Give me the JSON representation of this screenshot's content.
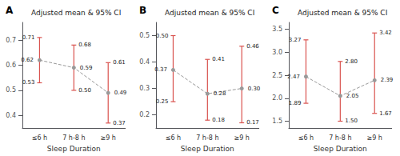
{
  "chart_data": [
    {
      "type": "line",
      "panel_label": "A",
      "title": "Adjusted mean & 95% CI",
      "xlabel": "Sleep Duration",
      "categories": [
        "≤6 h",
        "7 h-8 h",
        "≥9 h"
      ],
      "values": [
        0.62,
        0.59,
        0.49
      ],
      "value_labels": [
        "0.62",
        "0.59",
        "0.49"
      ],
      "ci_low": [
        0.53,
        0.5,
        0.37
      ],
      "ci_low_labels": [
        "0.53",
        "0.50",
        "0.37"
      ],
      "ci_high": [
        0.71,
        0.68,
        0.61
      ],
      "ci_high_labels": [
        "0.71",
        "0.68",
        "0.61"
      ],
      "ylim": [
        0.35,
        0.77
      ],
      "yticks": [
        0.4,
        0.5,
        0.6,
        0.7
      ],
      "grid": false,
      "data_labels": true,
      "line_style": "dashed",
      "marker": "circle",
      "color": "#999999",
      "ci_color": "#d9534f"
    },
    {
      "type": "line",
      "panel_label": "B",
      "title": "Adjusted mean & 95% CI",
      "xlabel": "Sleep Duration",
      "categories": [
        "≤6 h",
        "7 h-8 h",
        "≥9 h"
      ],
      "values": [
        0.37,
        0.28,
        0.3
      ],
      "value_labels": [
        "0.37",
        "0.28",
        "0.30"
      ],
      "ci_low": [
        0.25,
        0.18,
        0.17
      ],
      "ci_low_labels": [
        "0.25",
        "0.18",
        "0.17"
      ],
      "ci_high": [
        0.5,
        0.41,
        0.46
      ],
      "ci_high_labels": [
        "0.50",
        "0.41",
        "0.46"
      ],
      "ylim": [
        0.15,
        0.55
      ],
      "yticks": [
        0.2,
        0.3,
        0.4,
        0.5
      ],
      "grid": false,
      "data_labels": true,
      "line_style": "dashed",
      "marker": "circle",
      "color": "#999999",
      "ci_color": "#d9534f"
    },
    {
      "type": "line",
      "panel_label": "C",
      "title": "Adjusted mean & 95% CI",
      "xlabel": "Sleep Duration",
      "categories": [
        "≤6 h",
        "7 h-8 h",
        "≥9 h"
      ],
      "values": [
        2.47,
        2.05,
        2.39
      ],
      "value_labels": [
        "2.47",
        "2.05",
        "2.39"
      ],
      "ci_low": [
        1.89,
        1.5,
        1.67
      ],
      "ci_low_labels": [
        "1.89",
        "1.50",
        "1.67"
      ],
      "ci_high": [
        3.27,
        2.8,
        3.42
      ],
      "ci_high_labels": [
        "3.27",
        "2.80",
        "3.42"
      ],
      "ylim": [
        1.35,
        3.65
      ],
      "yticks": [
        1.5,
        {
          "value": 2.0,
          "label": "2.0"
        },
        2.5,
        {
          "value": 3.0,
          "label": "3.0"
        },
        3.5
      ],
      "grid": false,
      "data_labels": true,
      "line_style": "dashed",
      "marker": "circle",
      "color": "#999999",
      "ci_color": "#d9534f"
    }
  ]
}
